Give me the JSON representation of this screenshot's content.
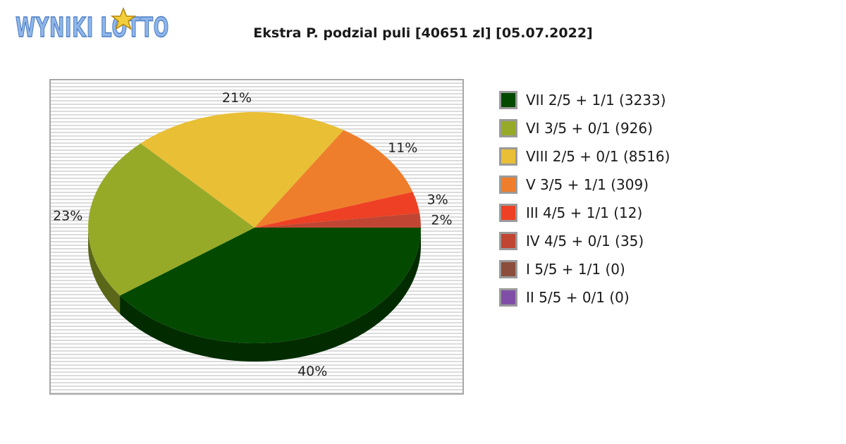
{
  "logo": {
    "text": "WYNIKI LOTTO",
    "colors": {
      "fill": "#8fb6ea",
      "stroke": "#4d7ec4",
      "star": "#f2cf3a",
      "star_edge": "#b8860b"
    }
  },
  "title": "Ekstra P. podzial puli [40651 zl] [05.07.2022]",
  "chart_data": {
    "type": "pie",
    "title": "Ekstra P. podzial puli [40651 zl] [05.07.2022]",
    "slices": [
      {
        "legend": "VII 2/5 + 1/1 (3233)",
        "value": 3233,
        "percent_label": "40%",
        "color": "#034a00"
      },
      {
        "legend": "VI 3/5 + 0/1 (926)",
        "value": 926,
        "percent_label": "23%",
        "color": "#96aa28"
      },
      {
        "legend": "VIII 2/5 + 0/1 (8516)",
        "value": 8516,
        "percent_label": "21%",
        "color": "#e9bf35"
      },
      {
        "legend": "V 3/5 + 1/1 (309)",
        "value": 309,
        "percent_label": "11%",
        "color": "#ef7e2c"
      },
      {
        "legend": "III 4/5 + 1/1 (12)",
        "value": 12,
        "percent_label": "3%",
        "color": "#ee4024"
      },
      {
        "legend": "IV 4/5 + 0/1 (35)",
        "value": 35,
        "percent_label": "2%",
        "color": "#c04633"
      },
      {
        "legend": "I 5/5 + 1/1 (0)",
        "value": 0,
        "percent_label": "",
        "color": "#8b4e3c"
      },
      {
        "legend": "II 5/5 + 0/1 (0)",
        "value": 0,
        "percent_label": "",
        "color": "#7f4fa8"
      }
    ],
    "slice_share_percent": [
      40,
      23,
      21,
      11,
      3,
      2,
      0,
      0
    ],
    "legend_placement": "right",
    "style": "3d-pie",
    "background": "striped-gray"
  }
}
